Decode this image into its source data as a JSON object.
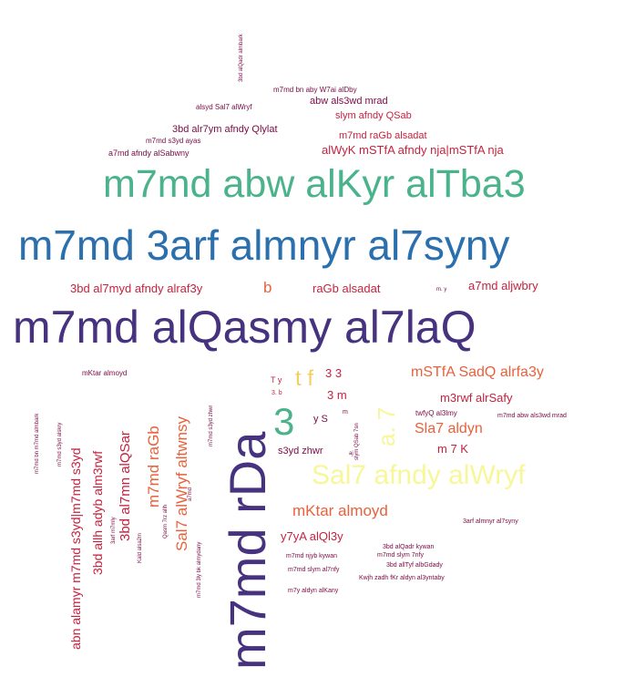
{
  "words": [
    {
      "text": "m7md alQasmy al7laQ",
      "color": "#46327e"
    },
    {
      "text": "m7md 3arf almnyr al7syny",
      "color": "#2b6fad"
    },
    {
      "text": "m7md abw alKyr alTba3",
      "color": "#4bb38c"
    },
    {
      "text": "m7md rDa",
      "color": "#46327e"
    },
    {
      "text": "Sal7 afndy alWryf",
      "color": "#f7f79a"
    },
    {
      "text": "3",
      "color": "#4bb38c"
    },
    {
      "text": "a. 7",
      "color": "#f7f79a"
    },
    {
      "text": "t f",
      "color": "#f3cd63"
    },
    {
      "text": "mSTfA SadQ alrfa3y",
      "color": "#e8613c"
    },
    {
      "text": "Sla7 aldyn",
      "color": "#e8613c"
    },
    {
      "text": "mKtar almoyd",
      "color": "#e8613c"
    },
    {
      "text": "Sal7 alWryf altwnsy",
      "color": "#e8613c"
    },
    {
      "text": "m7md raGb",
      "color": "#e8613c"
    },
    {
      "text": "b",
      "color": "#e8613c"
    },
    {
      "text": "3bd al7mn alQSar",
      "color": "#c3233f"
    },
    {
      "text": "3bd allh adyb alm3rwf",
      "color": "#c3233f"
    },
    {
      "text": "abn alamyr m7md s3yd|m7md s3yd",
      "color": "#c3233f"
    },
    {
      "text": "3bd al7myd afndy alraf3y",
      "color": "#c3233f"
    },
    {
      "text": "raGb alsadat",
      "color": "#c3233f"
    },
    {
      "text": "a7md aljwbry",
      "color": "#c3233f"
    },
    {
      "text": "3 3",
      "color": "#c3233f"
    },
    {
      "text": "3 m",
      "color": "#c3233f"
    },
    {
      "text": "m3rwf alrSafy",
      "color": "#c3233f"
    },
    {
      "text": "m 7 K",
      "color": "#c3233f"
    },
    {
      "text": "y7yA alQl3y",
      "color": "#c3233f"
    },
    {
      "text": "alWyK mSTfA afndy nja|mSTfA nja",
      "color": "#c3233f"
    },
    {
      "text": "m7md raGb alsadat",
      "color": "#c3233f"
    },
    {
      "text": "slym afndy QSab",
      "color": "#c3233f"
    },
    {
      "text": "3bd alr7ym afndy Qlylat",
      "color": "#7a0a45"
    },
    {
      "text": "abw als3wd mrad",
      "color": "#7a0a45"
    },
    {
      "text": "s3yd zhwr",
      "color": "#7a0a45"
    },
    {
      "text": "y S",
      "color": "#7a0a45"
    },
    {
      "text": "T y",
      "color": "#c3233f"
    },
    {
      "text": "twfyQ al3lmy",
      "color": "#7a0a45"
    },
    {
      "text": "a7md afndy alSabwny",
      "color": "#7a0a45"
    },
    {
      "text": "alsyd Sal7 alWryf",
      "color": "#7a0a45"
    },
    {
      "text": "m7md bn aby W7ai alDby",
      "color": "#7a0a45"
    },
    {
      "text": "m7md s3yd ayas",
      "color": "#7a0a45"
    },
    {
      "text": "mKtar almoyd",
      "color": "#7a0a45"
    },
    {
      "text": "m7md abw als3wd mrad",
      "color": "#7a0a45"
    },
    {
      "text": "3arf almnyr al7syny",
      "color": "#7a0a45"
    },
    {
      "text": "3bd alQadr kywan",
      "color": "#7a0a45"
    },
    {
      "text": "m7md slym 7nfy",
      "color": "#7a0a45"
    },
    {
      "text": "m7md njyb kywan",
      "color": "#7a0a45"
    },
    {
      "text": "3bd allTyf albGdady",
      "color": "#7a0a45"
    },
    {
      "text": "m7md slym al7nfy",
      "color": "#7a0a45"
    },
    {
      "text": "Kwjh zadh fKr aldyn al3yntaby",
      "color": "#7a0a45"
    },
    {
      "text": "m7y aldyn alKany",
      "color": "#7a0a45"
    },
    {
      "text": "3. b",
      "color": "#c3233f"
    },
    {
      "text": "m. y",
      "color": "#7a0a45"
    },
    {
      "text": "aj",
      "color": "#7a0a45"
    },
    {
      "text": "m",
      "color": "#7a0a45"
    },
    {
      "text": "3bd alQadr almbark",
      "color": "#7a0a45"
    },
    {
      "text": "m7md bn m7md almbark",
      "color": "#7a0a45"
    },
    {
      "text": "m7md s3yd alskry",
      "color": "#7a0a45"
    },
    {
      "text": "3arf m7mly",
      "color": "#7a0a45"
    },
    {
      "text": "Kald alsa2m",
      "color": "#7a0a45"
    },
    {
      "text": "Qasm 7rz allh",
      "color": "#7a0a45"
    },
    {
      "text": "a7md",
      "color": "#7a0a45"
    },
    {
      "text": "m7md 3ly bk almydany",
      "color": "#7a0a45"
    },
    {
      "text": "m7md s3yd zhwr",
      "color": "#7a0a45"
    },
    {
      "text": "slym QSab 7sn",
      "color": "#7a0a45"
    }
  ]
}
